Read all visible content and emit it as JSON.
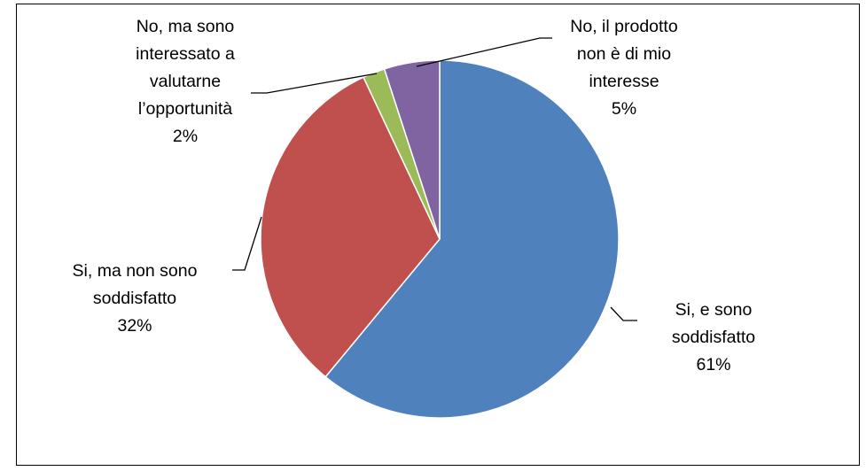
{
  "chart_data": {
    "type": "pie",
    "title": "",
    "slices": [
      {
        "label_lines": [
          "Si, e sono",
          "soddisfatto"
        ],
        "value": 61,
        "pct_label": "61%",
        "color": "#4F81BD"
      },
      {
        "label_lines": [
          "Si, ma non sono",
          "soddisfatto"
        ],
        "value": 32,
        "pct_label": "32%",
        "color": "#C0504D"
      },
      {
        "label_lines": [
          "No, ma sono",
          "interessato a",
          "valutarne",
          "l’opportunità"
        ],
        "value": 2,
        "pct_label": "2%",
        "color": "#9BBB59"
      },
      {
        "label_lines": [
          "No, il prodotto",
          "non è di mio",
          "interesse"
        ],
        "value": 5,
        "pct_label": "5%",
        "color": "#8064A2"
      }
    ],
    "start_angle": "12 o'clock",
    "direction": "clockwise"
  }
}
